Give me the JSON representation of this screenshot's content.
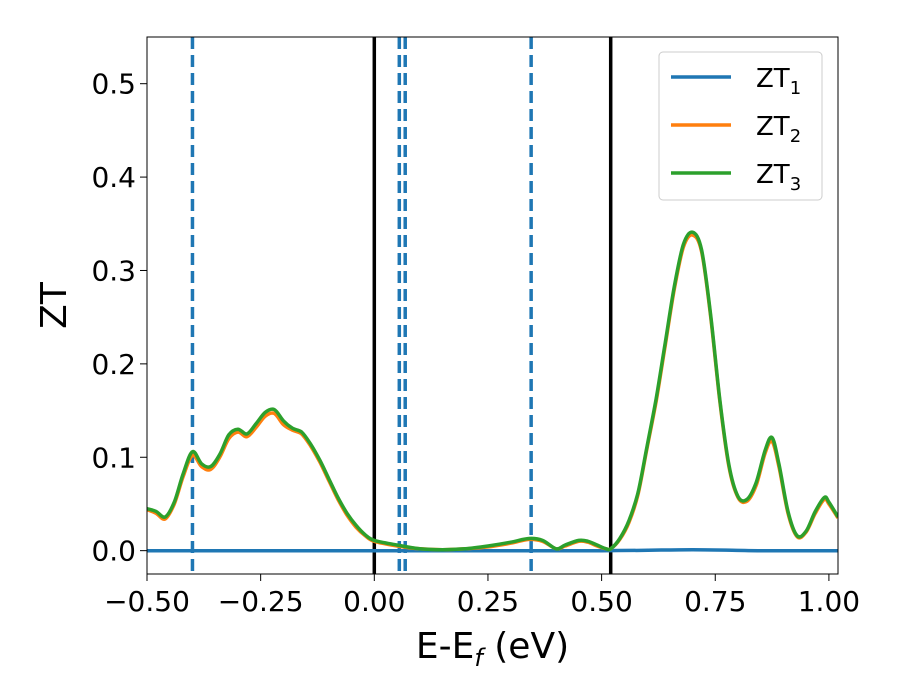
{
  "chart_data": {
    "type": "line",
    "title": "",
    "xlabel": {
      "base": "E-E",
      "sub": "f",
      "rest": " (eV)"
    },
    "ylabel": "ZT",
    "xlim": [
      -0.5,
      1.02
    ],
    "ylim": [
      -0.025,
      0.55
    ],
    "xticks": [
      -0.5,
      -0.25,
      0.0,
      0.25,
      0.5,
      0.75,
      1.0
    ],
    "xtick_labels": [
      "−0.50",
      "−0.25",
      "0.00",
      "0.25",
      "0.50",
      "0.75",
      "1.00"
    ],
    "yticks": [
      0.0,
      0.1,
      0.2,
      0.3,
      0.4,
      0.5
    ],
    "ytick_labels": [
      "0.0",
      "0.1",
      "0.2",
      "0.3",
      "0.4",
      "0.5"
    ],
    "grid": false,
    "legend_position": "top-right",
    "vlines_solid": [
      0.0,
      0.52
    ],
    "vlines_dashed": [
      -0.4,
      0.055,
      0.068,
      0.345
    ],
    "vline_dashed_color": "#1f77b4",
    "vline_solid_color": "#000000",
    "series": [
      {
        "name": "ZT",
        "sub": "1",
        "color": "#1f77b4",
        "x": [
          -0.5,
          0.0,
          0.5,
          0.7,
          0.85,
          1.02
        ],
        "y": [
          0.0,
          0.0,
          0.0,
          0.001,
          0.0,
          0.0
        ]
      },
      {
        "name": "ZT",
        "sub": "2",
        "color": "#ff7f0e",
        "x": [
          -0.5,
          -0.48,
          -0.46,
          -0.44,
          -0.42,
          -0.4,
          -0.38,
          -0.36,
          -0.34,
          -0.32,
          -0.3,
          -0.28,
          -0.26,
          -0.24,
          -0.22,
          -0.2,
          -0.18,
          -0.16,
          -0.14,
          -0.12,
          -0.1,
          -0.08,
          -0.06,
          -0.04,
          -0.02,
          0.0,
          0.05,
          0.1,
          0.15,
          0.2,
          0.25,
          0.3,
          0.34,
          0.37,
          0.4,
          0.42,
          0.45,
          0.47,
          0.49,
          0.51,
          0.52,
          0.54,
          0.56,
          0.58,
          0.6,
          0.62,
          0.64,
          0.66,
          0.68,
          0.7,
          0.72,
          0.74,
          0.76,
          0.78,
          0.8,
          0.82,
          0.84,
          0.86,
          0.875,
          0.89,
          0.91,
          0.93,
          0.95,
          0.97,
          0.99,
          1.0,
          1.02
        ],
        "y": [
          0.044,
          0.04,
          0.034,
          0.05,
          0.08,
          0.102,
          0.09,
          0.087,
          0.1,
          0.12,
          0.127,
          0.122,
          0.132,
          0.144,
          0.147,
          0.135,
          0.129,
          0.125,
          0.112,
          0.095,
          0.075,
          0.055,
          0.038,
          0.025,
          0.016,
          0.01,
          0.005,
          0.002,
          0.001,
          0.002,
          0.004,
          0.008,
          0.012,
          0.01,
          0.002,
          0.005,
          0.01,
          0.009,
          0.005,
          0.002,
          0.002,
          0.012,
          0.03,
          0.06,
          0.11,
          0.16,
          0.22,
          0.28,
          0.325,
          0.338,
          0.32,
          0.25,
          0.16,
          0.09,
          0.057,
          0.053,
          0.07,
          0.105,
          0.117,
          0.09,
          0.04,
          0.015,
          0.02,
          0.04,
          0.055,
          0.05,
          0.035
        ]
      },
      {
        "name": "ZT",
        "sub": "3",
        "color": "#2ca02c",
        "x": [
          -0.5,
          -0.48,
          -0.46,
          -0.44,
          -0.42,
          -0.4,
          -0.38,
          -0.36,
          -0.34,
          -0.32,
          -0.3,
          -0.28,
          -0.26,
          -0.24,
          -0.22,
          -0.2,
          -0.18,
          -0.16,
          -0.14,
          -0.12,
          -0.1,
          -0.08,
          -0.06,
          -0.04,
          -0.02,
          0.0,
          0.05,
          0.1,
          0.15,
          0.2,
          0.25,
          0.3,
          0.34,
          0.37,
          0.4,
          0.42,
          0.45,
          0.47,
          0.49,
          0.51,
          0.52,
          0.54,
          0.56,
          0.58,
          0.6,
          0.62,
          0.64,
          0.66,
          0.68,
          0.7,
          0.72,
          0.74,
          0.76,
          0.78,
          0.8,
          0.82,
          0.84,
          0.86,
          0.875,
          0.89,
          0.91,
          0.93,
          0.95,
          0.97,
          0.99,
          1.0,
          1.02
        ],
        "y": [
          0.045,
          0.042,
          0.036,
          0.052,
          0.083,
          0.106,
          0.093,
          0.09,
          0.103,
          0.124,
          0.13,
          0.125,
          0.136,
          0.148,
          0.151,
          0.139,
          0.131,
          0.127,
          0.114,
          0.097,
          0.077,
          0.057,
          0.04,
          0.027,
          0.017,
          0.011,
          0.006,
          0.002,
          0.001,
          0.002,
          0.005,
          0.009,
          0.013,
          0.011,
          0.002,
          0.006,
          0.011,
          0.01,
          0.006,
          0.002,
          0.002,
          0.013,
          0.032,
          0.062,
          0.112,
          0.163,
          0.223,
          0.283,
          0.328,
          0.341,
          0.322,
          0.252,
          0.162,
          0.092,
          0.058,
          0.055,
          0.073,
          0.108,
          0.121,
          0.093,
          0.042,
          0.016,
          0.021,
          0.042,
          0.057,
          0.052,
          0.036
        ]
      }
    ]
  }
}
